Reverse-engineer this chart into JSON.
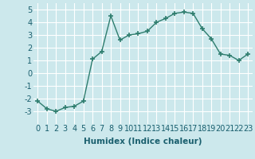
{
  "x": [
    0,
    1,
    2,
    3,
    4,
    5,
    6,
    7,
    8,
    9,
    10,
    11,
    12,
    13,
    14,
    15,
    16,
    17,
    18,
    19,
    20,
    21,
    22,
    23
  ],
  "y": [
    -2.2,
    -2.8,
    -3.0,
    -2.7,
    -2.6,
    -2.2,
    1.1,
    1.7,
    4.5,
    2.6,
    3.0,
    3.1,
    3.3,
    4.0,
    4.3,
    4.7,
    4.8,
    4.7,
    3.5,
    2.7,
    1.5,
    1.4,
    1.0,
    1.5
  ],
  "xlabel": "Humidex (Indice chaleur)",
  "xlim": [
    -0.5,
    23.5
  ],
  "ylim": [
    -4,
    5.5
  ],
  "yticks": [
    -3,
    -2,
    -1,
    0,
    1,
    2,
    3,
    4,
    5
  ],
  "xticks": [
    0,
    1,
    2,
    3,
    4,
    5,
    6,
    7,
    8,
    9,
    10,
    11,
    12,
    13,
    14,
    15,
    16,
    17,
    18,
    19,
    20,
    21,
    22,
    23
  ],
  "line_color": "#2e7d6e",
  "marker": "+",
  "marker_size": 4,
  "marker_lw": 1.2,
  "bg_color": "#cce8ec",
  "grid_color": "#ffffff",
  "xlabel_fontsize": 7.5,
  "tick_fontsize": 7,
  "line_width": 1.0
}
